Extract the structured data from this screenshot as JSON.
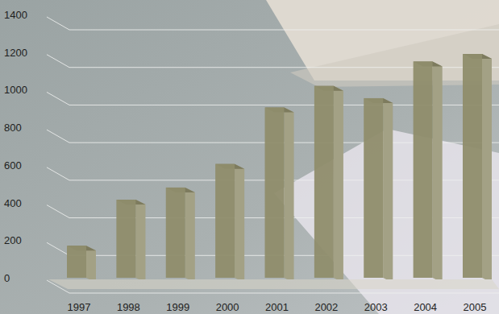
{
  "chart_data": {
    "type": "bar",
    "categories": [
      "1997",
      "1998",
      "1999",
      "2000",
      "2001",
      "2002",
      "2003",
      "2004",
      "2005"
    ],
    "values": [
      170,
      415,
      480,
      605,
      905,
      1020,
      955,
      1150,
      1190
    ],
    "color": "#8f8d6b",
    "ylim": [
      0,
      1400
    ],
    "yticks": [
      0,
      200,
      400,
      600,
      800,
      1000,
      1200,
      1400
    ],
    "grid": true
  }
}
